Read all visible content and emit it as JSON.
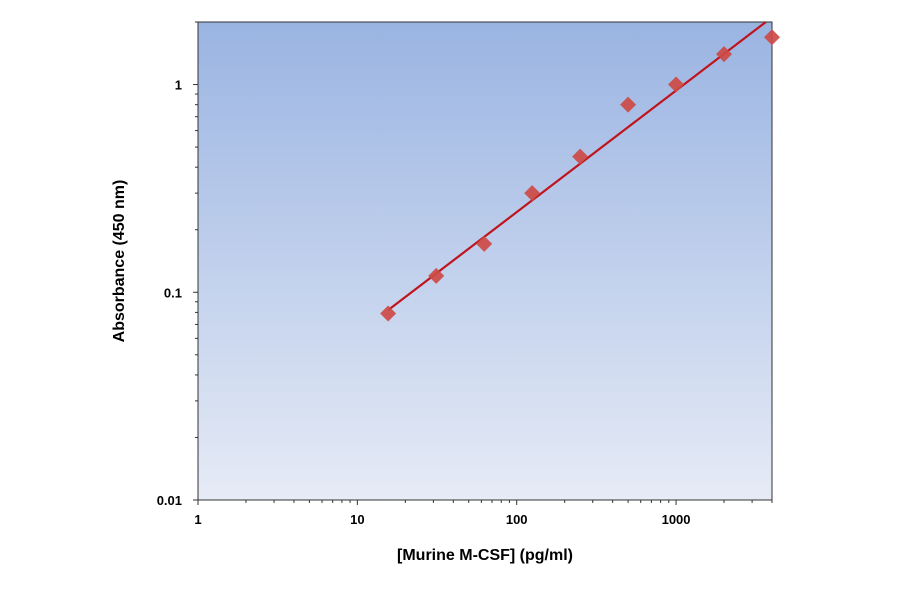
{
  "chart_data": {
    "type": "scatter",
    "title": "",
    "xlabel": "[Murine M-CSF] (pg/ml)",
    "ylabel": "Absorbance (450 nm)",
    "x_scale": "log",
    "y_scale": "log",
    "xlim": [
      1,
      4000
    ],
    "ylim": [
      0.01,
      2
    ],
    "x_ticks": [
      1,
      10,
      100,
      1000
    ],
    "x_tick_labels": [
      "1",
      "10",
      "100",
      "1000"
    ],
    "y_ticks": [
      0.01,
      0.1,
      1
    ],
    "y_tick_labels": [
      "0.01",
      "0.1",
      "1"
    ],
    "grid": false,
    "points": {
      "x": [
        15.6,
        31.25,
        62.5,
        125,
        250,
        500,
        1000,
        2000,
        4000
      ],
      "y": [
        0.079,
        0.12,
        0.171,
        0.3,
        0.45,
        0.8,
        1.0,
        1.4,
        1.69
      ]
    },
    "fit_line": {
      "x": [
        15.6,
        3660
      ],
      "y": [
        0.082,
        2.0
      ]
    },
    "colors": {
      "marker": "#cd4a45",
      "line": "#c0141c",
      "bg_top": "#9ab4e2",
      "bg_bottom": "#e6ebf6"
    }
  }
}
